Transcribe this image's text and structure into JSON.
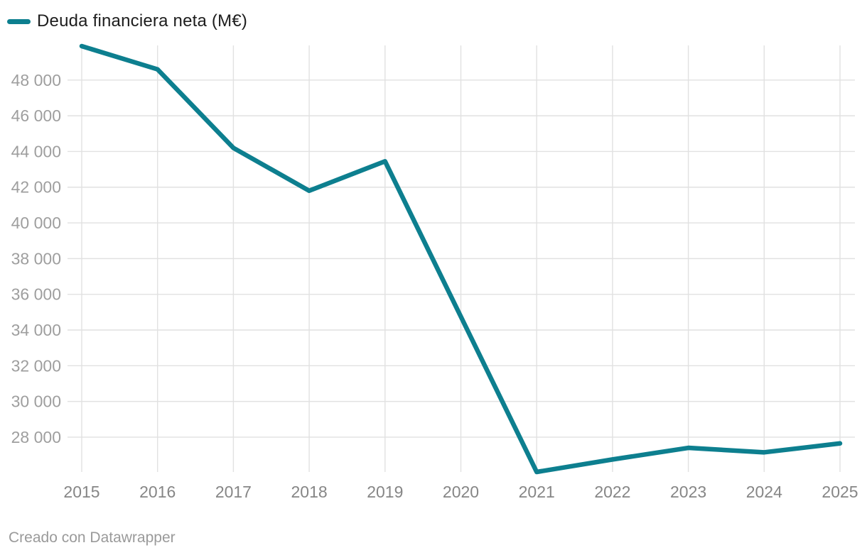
{
  "chart_data": {
    "type": "line",
    "legend": "Deuda financiera neta (M€)",
    "legend_position": "top-left",
    "x": [
      2015,
      2016,
      2017,
      2018,
      2019,
      2020,
      2021,
      2022,
      2023,
      2024,
      2025
    ],
    "x_labels": [
      "2015",
      "2016",
      "2017",
      "2018",
      "2019",
      "2020",
      "2021",
      "2022",
      "2023",
      "2024",
      "2025"
    ],
    "series": [
      {
        "name": "Deuda financiera neta (M€)",
        "values": [
          49900,
          48600,
          44200,
          41800,
          43450,
          34750,
          26050,
          26750,
          27400,
          27150,
          27650
        ]
      }
    ],
    "y_ticks": [
      {
        "value": 28000,
        "label": "28 000"
      },
      {
        "value": 30000,
        "label": "30 000"
      },
      {
        "value": 32000,
        "label": "32 000"
      },
      {
        "value": 34000,
        "label": "34 000"
      },
      {
        "value": 36000,
        "label": "36 000"
      },
      {
        "value": 38000,
        "label": "38 000"
      },
      {
        "value": 40000,
        "label": "40 000"
      },
      {
        "value": 42000,
        "label": "42 000"
      },
      {
        "value": 44000,
        "label": "44 000"
      },
      {
        "value": 46000,
        "label": "46 000"
      },
      {
        "value": 48000,
        "label": "48 000"
      }
    ],
    "ylim": [
      26050,
      49900
    ],
    "grid": true,
    "line_color": "#0d7f8f",
    "grid_color": "#e1e1e1"
  },
  "footer": {
    "credit": "Creado con Datawrapper"
  }
}
